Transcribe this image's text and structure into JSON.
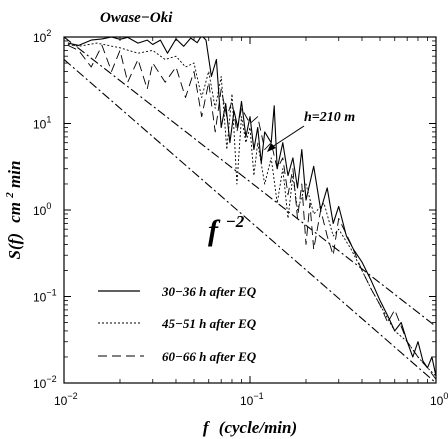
{
  "chart_data": {
    "type": "line",
    "title": "Owase−Oki",
    "xlabel_main": "f",
    "xlabel_unit": "(cycle/min)",
    "ylabel_main": "S(f)",
    "ylabel_unit": "cm",
    "ylabel_unit_sup": "2",
    "ylabel_unit_tail": "min",
    "x_scale": "log",
    "y_scale": "log",
    "xlim": [
      0.01,
      1
    ],
    "ylim": [
      0.01,
      100
    ],
    "x_ticks": [
      {
        "value": 0.01,
        "base": "10",
        "exp": "−2"
      },
      {
        "value": 0.1,
        "base": "10",
        "exp": "−1"
      },
      {
        "value": 1,
        "base": "10",
        "exp": "0"
      }
    ],
    "y_ticks": [
      {
        "value": 0.01,
        "base": "10",
        "exp": "−2"
      },
      {
        "value": 0.1,
        "base": "10",
        "exp": "−1"
      },
      {
        "value": 1,
        "base": "10",
        "exp": "0"
      },
      {
        "value": 10,
        "base": "10",
        "exp": "1"
      },
      {
        "value": 100,
        "base": "10",
        "exp": "2"
      }
    ],
    "series": [
      {
        "name": "30−36 h after EQ",
        "dash": "solid",
        "points": [
          [
            0.0105,
            85
          ],
          [
            0.012,
            80
          ],
          [
            0.014,
            92
          ],
          [
            0.016,
            95
          ],
          [
            0.018,
            100
          ],
          [
            0.02,
            94
          ],
          [
            0.022,
            99
          ],
          [
            0.025,
            85
          ],
          [
            0.028,
            92
          ],
          [
            0.03,
            82
          ],
          [
            0.033,
            92
          ],
          [
            0.036,
            65
          ],
          [
            0.04,
            95
          ],
          [
            0.044,
            78
          ],
          [
            0.048,
            97
          ],
          [
            0.052,
            86
          ],
          [
            0.055,
            104
          ],
          [
            0.058,
            92
          ],
          [
            0.062,
            35
          ],
          [
            0.066,
            55
          ],
          [
            0.07,
            9
          ],
          [
            0.074,
            17
          ],
          [
            0.078,
            6
          ],
          [
            0.082,
            14
          ],
          [
            0.086,
            9
          ],
          [
            0.09,
            18
          ],
          [
            0.095,
            7
          ],
          [
            0.1,
            12
          ],
          [
            0.105,
            5
          ],
          [
            0.11,
            9
          ],
          [
            0.115,
            3.5
          ],
          [
            0.12,
            8
          ],
          [
            0.13,
            6
          ],
          [
            0.135,
            16
          ],
          [
            0.14,
            3
          ],
          [
            0.15,
            6
          ],
          [
            0.16,
            2.5
          ],
          [
            0.17,
            4
          ],
          [
            0.18,
            1.8
          ],
          [
            0.19,
            5
          ],
          [
            0.2,
            1.3
          ],
          [
            0.22,
            3.2
          ],
          [
            0.24,
            1
          ],
          [
            0.26,
            1.8
          ],
          [
            0.28,
            0.7
          ],
          [
            0.3,
            1.1
          ],
          [
            0.33,
            0.5
          ],
          [
            0.36,
            0.35
          ],
          [
            0.4,
            0.25
          ],
          [
            0.45,
            0.15
          ],
          [
            0.5,
            0.09
          ],
          [
            0.55,
            0.06
          ],
          [
            0.6,
            0.04
          ],
          [
            0.65,
            0.05
          ],
          [
            0.7,
            0.03
          ],
          [
            0.75,
            0.02
          ],
          [
            0.8,
            0.03
          ],
          [
            0.85,
            0.018
          ],
          [
            0.9,
            0.015
          ],
          [
            0.95,
            0.02
          ],
          [
            1,
            0.012
          ]
        ]
      },
      {
        "name": "45−51 h after EQ",
        "dash": "dotted",
        "points": [
          [
            0.0105,
            82
          ],
          [
            0.012,
            78
          ],
          [
            0.015,
            85
          ],
          [
            0.02,
            75
          ],
          [
            0.025,
            65
          ],
          [
            0.03,
            70
          ],
          [
            0.035,
            55
          ],
          [
            0.04,
            60
          ],
          [
            0.045,
            45
          ],
          [
            0.05,
            50
          ],
          [
            0.055,
            20
          ],
          [
            0.06,
            40
          ],
          [
            0.065,
            15
          ],
          [
            0.07,
            35
          ],
          [
            0.075,
            5
          ],
          [
            0.08,
            22
          ],
          [
            0.085,
            2
          ],
          [
            0.09,
            12
          ],
          [
            0.095,
            6
          ],
          [
            0.1,
            9
          ],
          [
            0.105,
            2.5
          ],
          [
            0.11,
            6
          ],
          [
            0.12,
            2
          ],
          [
            0.13,
            4
          ],
          [
            0.14,
            1.2
          ],
          [
            0.15,
            3
          ],
          [
            0.16,
            0.8
          ],
          [
            0.17,
            2.5
          ],
          [
            0.18,
            1
          ],
          [
            0.2,
            2
          ],
          [
            0.22,
            0.9
          ],
          [
            0.25,
            1.2
          ],
          [
            0.28,
            0.5
          ],
          [
            0.3,
            0.6
          ],
          [
            0.35,
            0.35
          ],
          [
            0.4,
            0.2
          ],
          [
            0.45,
            0.12
          ],
          [
            0.5,
            0.08
          ],
          [
            0.6,
            0.04
          ],
          [
            0.7,
            0.03
          ],
          [
            0.8,
            0.02
          ],
          [
            0.9,
            0.015
          ],
          [
            1,
            0.012
          ]
        ]
      },
      {
        "name": "60−66 h after EQ",
        "dash": "dashed",
        "points": [
          [
            0.0105,
            80
          ],
          [
            0.012,
            70
          ],
          [
            0.014,
            45
          ],
          [
            0.016,
            80
          ],
          [
            0.018,
            40
          ],
          [
            0.02,
            70
          ],
          [
            0.022,
            30
          ],
          [
            0.025,
            55
          ],
          [
            0.028,
            25
          ],
          [
            0.03,
            50
          ],
          [
            0.035,
            30
          ],
          [
            0.04,
            45
          ],
          [
            0.045,
            20
          ],
          [
            0.05,
            40
          ],
          [
            0.055,
            12
          ],
          [
            0.06,
            30
          ],
          [
            0.065,
            8
          ],
          [
            0.07,
            25
          ],
          [
            0.075,
            12
          ],
          [
            0.08,
            18
          ],
          [
            0.085,
            8
          ],
          [
            0.09,
            15
          ],
          [
            0.1,
            10
          ],
          [
            0.11,
            12
          ],
          [
            0.12,
            5
          ],
          [
            0.13,
            6
          ],
          [
            0.14,
            3
          ],
          [
            0.15,
            4
          ],
          [
            0.16,
            1.5
          ],
          [
            0.17,
            3
          ],
          [
            0.18,
            0.8
          ],
          [
            0.19,
            2
          ],
          [
            0.2,
            0.4
          ],
          [
            0.21,
            1.2
          ],
          [
            0.22,
            0.35
          ],
          [
            0.24,
            1
          ],
          [
            0.26,
            0.5
          ],
          [
            0.28,
            0.3
          ],
          [
            0.3,
            0.8
          ],
          [
            0.35,
            0.4
          ],
          [
            0.4,
            0.2
          ],
          [
            0.45,
            0.12
          ],
          [
            0.5,
            0.08
          ],
          [
            0.55,
            0.05
          ],
          [
            0.6,
            0.07
          ],
          [
            0.7,
            0.03
          ],
          [
            0.8,
            0.02
          ],
          [
            0.9,
            0.015
          ],
          [
            1,
            0.011
          ]
        ]
      }
    ],
    "reference_lines": [
      {
        "name": "f⁻² upper",
        "dash": "dashdot",
        "from": [
          0.01,
          100
        ],
        "to": [
          1,
          0.045
        ]
      },
      {
        "name": "f⁻² lower",
        "dash": "dashdot",
        "from": [
          0.01,
          55
        ],
        "to": [
          1,
          0.01
        ]
      }
    ],
    "annotations": [
      {
        "text": "h=210 m",
        "arrow_to": [
          0.1,
          4.6
        ]
      },
      {
        "text_base": "f",
        "text_sup": "−2"
      }
    ],
    "legend_placement": "bottom-left",
    "grid": false
  }
}
